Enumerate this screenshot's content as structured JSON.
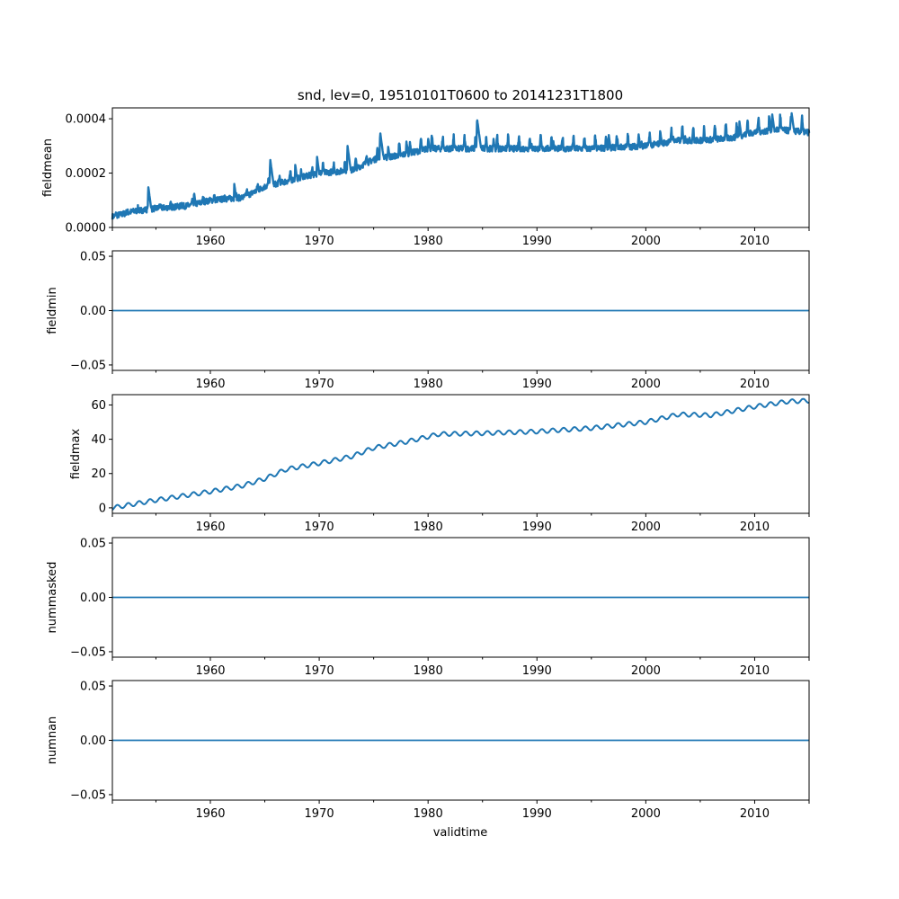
{
  "figure": {
    "title": "snd, lev=0, 19510101T0600 to 20141231T1800",
    "xlabel": "validtime"
  },
  "colors": {
    "series": "#1f77b4",
    "axis": "#000000",
    "background": "#ffffff"
  },
  "chart_data": [
    {
      "type": "line",
      "name": "fieldmean",
      "title": "snd, lev=0, 19510101T0600 to 20141231T1800",
      "xlabel": "",
      "ylabel": "fieldmean",
      "xlim": [
        1951.0,
        2015.0
      ],
      "ylim": [
        0.0,
        0.00044
      ],
      "xticks": [
        1960,
        1970,
        1980,
        1990,
        2000,
        2010
      ],
      "xtick_labels": [
        "1960",
        "1970",
        "1980",
        "1990",
        "2000",
        "2010"
      ],
      "yticks": [
        0.0,
        0.0002,
        0.0004
      ],
      "ytick_labels": [
        "0.0000",
        "0.0002",
        "0.0004"
      ],
      "grid": false,
      "trend": {
        "x": [
          1951,
          1953,
          1955,
          1958,
          1960,
          1963,
          1965,
          1967,
          1970,
          1973,
          1975,
          1978,
          1980,
          1985,
          1990,
          1995,
          2000,
          2003,
          2005,
          2008,
          2010,
          2012,
          2015
        ],
        "y": [
          4e-05,
          6e-05,
          7e-05,
          8e-05,
          0.0001,
          0.00011,
          0.00015,
          0.00017,
          0.0002,
          0.00021,
          0.00025,
          0.00027,
          0.00029,
          0.00029,
          0.00029,
          0.00029,
          0.0003,
          0.00032,
          0.00032,
          0.00033,
          0.00035,
          0.00036,
          0.00035
        ]
      },
      "spikes": {
        "x": [
          1954.3,
          1958.5,
          1962.2,
          1965.5,
          1967.8,
          1969.8,
          1972.6,
          1975.6,
          1978.0,
          1980.0,
          1984.5,
          1986.0,
          1989.5,
          1991.5,
          1996.6,
          1999.6,
          2002.5,
          2003.6,
          2008.6,
          2011.6,
          2013.4
        ],
        "y": [
          0.00015,
          0.00013,
          0.00016,
          0.00025,
          0.00023,
          0.00026,
          0.0003,
          0.00035,
          0.00032,
          0.00033,
          0.0004,
          0.00033,
          0.00031,
          0.00032,
          0.00034,
          0.00032,
          0.00034,
          0.00034,
          0.00039,
          0.00042,
          0.00042
        ]
      }
    },
    {
      "type": "line",
      "name": "fieldmin",
      "ylabel": "fieldmin",
      "xlim": [
        1951.0,
        2015.0
      ],
      "ylim": [
        -0.055,
        0.055
      ],
      "xticks": [
        1960,
        1970,
        1980,
        1990,
        2000,
        2010
      ],
      "xtick_labels": [
        "1960",
        "1970",
        "1980",
        "1990",
        "2000",
        "2010"
      ],
      "yticks": [
        -0.05,
        0.0,
        0.05
      ],
      "ytick_labels": [
        "−0.05",
        "0.00",
        "0.05"
      ],
      "x": [
        1951.0,
        2015.0
      ],
      "y": [
        0.0,
        0.0
      ]
    },
    {
      "type": "line",
      "name": "fieldmax",
      "ylabel": "fieldmax",
      "xlim": [
        1951.0,
        2015.0
      ],
      "ylim": [
        -3.2,
        66.0
      ],
      "xticks": [
        1960,
        1970,
        1980,
        1990,
        2000,
        2010
      ],
      "xtick_labels": [
        "1960",
        "1970",
        "1980",
        "1990",
        "2000",
        "2010"
      ],
      "yticks": [
        0,
        20,
        40,
        60
      ],
      "ytick_labels": [
        "0",
        "20",
        "40",
        "60"
      ],
      "trend": {
        "x": [
          1951,
          1955,
          1960,
          1963,
          1965,
          1967,
          1970,
          1973,
          1975,
          1978,
          1981,
          1985,
          1990,
          1995,
          2000,
          2003,
          2006,
          2010,
          2013,
          2015
        ],
        "y": [
          0.0,
          4.5,
          9.5,
          13.0,
          17.0,
          22.5,
          26.0,
          30.0,
          35.0,
          38.5,
          43.0,
          43.5,
          44.5,
          46.5,
          50.0,
          54.5,
          54.0,
          59.0,
          62.0,
          62.5
        ]
      },
      "seasonal_amplitude": 1.2
    },
    {
      "type": "line",
      "name": "nummasked",
      "ylabel": "nummasked",
      "xlim": [
        1951.0,
        2015.0
      ],
      "ylim": [
        -0.055,
        0.055
      ],
      "xticks": [
        1960,
        1970,
        1980,
        1990,
        2000,
        2010
      ],
      "xtick_labels": [
        "1960",
        "1970",
        "1980",
        "1990",
        "2000",
        "2010"
      ],
      "yticks": [
        -0.05,
        0.0,
        0.05
      ],
      "ytick_labels": [
        "−0.05",
        "0.00",
        "0.05"
      ],
      "x": [
        1951.0,
        2015.0
      ],
      "y": [
        0.0,
        0.0
      ]
    },
    {
      "type": "line",
      "name": "numnan",
      "ylabel": "numnan",
      "xlabel": "validtime",
      "xlim": [
        1951.0,
        2015.0
      ],
      "ylim": [
        -0.055,
        0.055
      ],
      "xticks": [
        1960,
        1970,
        1980,
        1990,
        2000,
        2010
      ],
      "xtick_labels": [
        "1960",
        "1970",
        "1980",
        "1990",
        "2000",
        "2010"
      ],
      "yticks": [
        -0.05,
        0.0,
        0.05
      ],
      "ytick_labels": [
        "−0.05",
        "0.00",
        "0.05"
      ],
      "x": [
        1951.0,
        2015.0
      ],
      "y": [
        0.0,
        0.0
      ]
    }
  ]
}
